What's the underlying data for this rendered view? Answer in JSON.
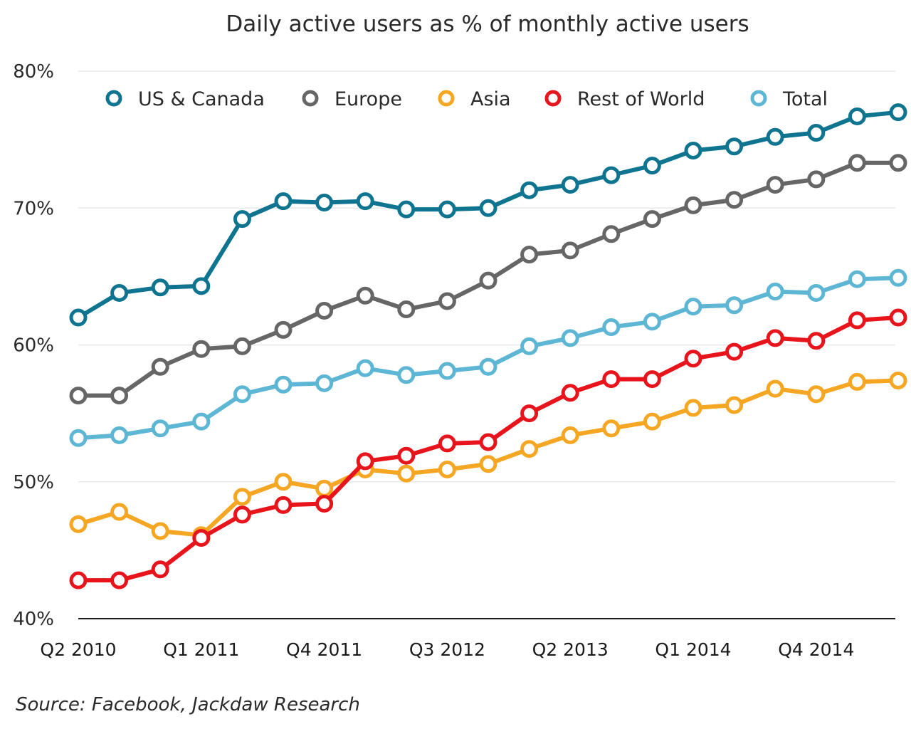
{
  "chart_data": {
    "type": "line",
    "title": "Daily active users as % of monthly active users",
    "source": "Source: Facebook, Jackdaw Research",
    "ylim": [
      40,
      80
    ],
    "yticks": [
      40,
      50,
      60,
      70,
      80
    ],
    "ytick_labels": [
      "40%",
      "50%",
      "60%",
      "70%",
      "80%"
    ],
    "x": [
      "Q2 2010",
      "Q3 2010",
      "Q4 2010",
      "Q1 2011",
      "Q2 2011",
      "Q3 2011",
      "Q4 2011",
      "Q1 2012",
      "Q2 2012",
      "Q3 2012",
      "Q4 2012",
      "Q1 2013",
      "Q2 2013",
      "Q3 2013",
      "Q4 2013",
      "Q1 2014",
      "Q2 2014",
      "Q3 2014",
      "Q4 2014",
      "Q1 2015",
      "Q2 2015"
    ],
    "x_tick_labels": [
      {
        "index": 0,
        "label": "Q2 2010"
      },
      {
        "index": 3,
        "label": "Q1 2011"
      },
      {
        "index": 6,
        "label": "Q4 2011"
      },
      {
        "index": 9,
        "label": "Q3 2012"
      },
      {
        "index": 12,
        "label": "Q2 2013"
      },
      {
        "index": 15,
        "label": "Q1 2014"
      },
      {
        "index": 18,
        "label": "Q4 2014"
      }
    ],
    "legend_position": "top",
    "series": [
      {
        "name": "US & Canada",
        "color": "#0e7490",
        "values": [
          62.0,
          63.8,
          64.2,
          64.3,
          69.2,
          70.5,
          70.4,
          70.5,
          69.9,
          69.9,
          70.0,
          71.3,
          71.7,
          72.4,
          73.1,
          74.2,
          74.5,
          75.2,
          75.5,
          76.7,
          77.0
        ]
      },
      {
        "name": "Europe",
        "color": "#666666",
        "values": [
          56.3,
          56.3,
          58.4,
          59.7,
          59.9,
          61.1,
          62.5,
          63.6,
          62.6,
          63.2,
          64.7,
          66.6,
          66.9,
          68.1,
          69.2,
          70.2,
          70.6,
          71.7,
          72.1,
          73.3,
          73.3
        ]
      },
      {
        "name": "Asia",
        "color": "#f5a623",
        "values": [
          46.9,
          47.8,
          46.4,
          46.1,
          48.9,
          50.0,
          49.5,
          50.9,
          50.6,
          50.9,
          51.3,
          52.4,
          53.4,
          53.9,
          54.4,
          55.4,
          55.6,
          56.8,
          56.4,
          57.3,
          57.4
        ]
      },
      {
        "name": "Rest of World",
        "color": "#e8141b",
        "values": [
          42.8,
          42.8,
          43.6,
          45.9,
          47.6,
          48.3,
          48.4,
          51.5,
          51.9,
          52.8,
          52.9,
          55.0,
          56.5,
          57.5,
          57.5,
          59.0,
          59.5,
          60.5,
          60.3,
          61.8,
          62.0
        ]
      },
      {
        "name": "Total",
        "color": "#5cb6d4",
        "values": [
          53.2,
          53.4,
          53.9,
          54.4,
          56.4,
          57.1,
          57.2,
          58.3,
          57.8,
          58.1,
          58.4,
          59.9,
          60.5,
          61.3,
          61.7,
          62.8,
          62.9,
          63.9,
          63.8,
          64.8,
          64.9
        ]
      }
    ]
  }
}
